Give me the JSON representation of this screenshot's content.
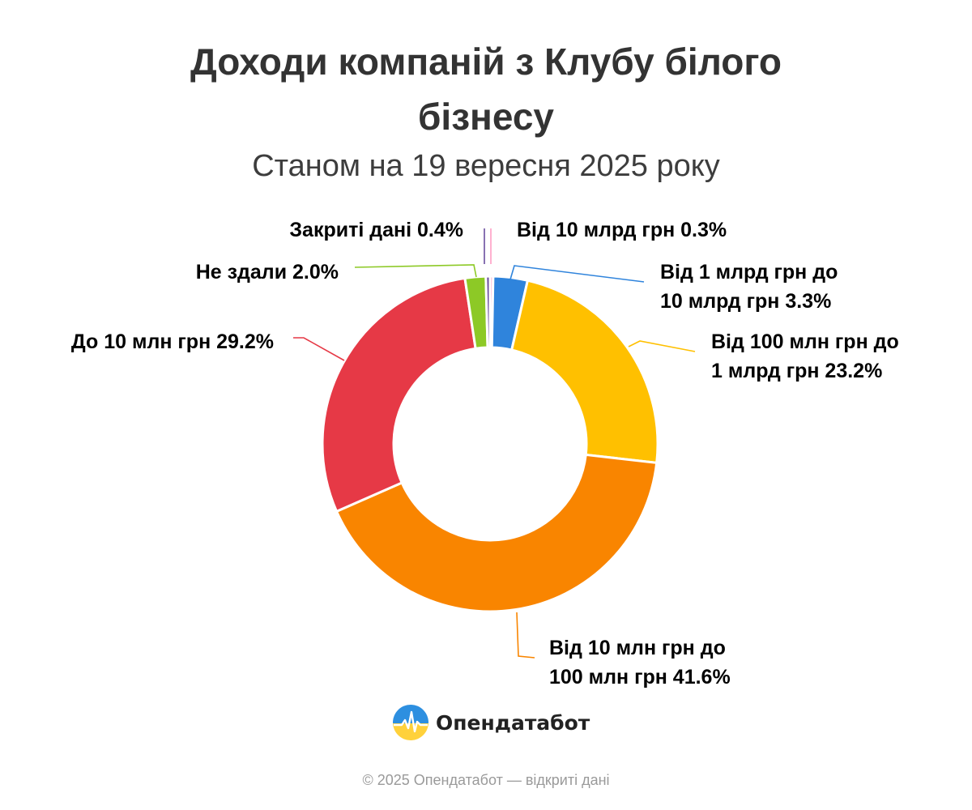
{
  "header": {
    "title": "Доходи компаній з Клубу білого бізнесу",
    "subtitle": "Станом на 19 вересня 2025 року"
  },
  "chart_data": {
    "type": "pie",
    "variant": "donut",
    "title": "Доходи компаній з Клубу білого бізнесу",
    "subtitle": "Станом на 19 вересня 2025 року",
    "legend": "none",
    "slices": [
      {
        "label": "Від 10 млрд грн",
        "value": 0.3,
        "value_text": "0.3%",
        "label_lines": [
          "Від 10 млрд грн 0.3%"
        ],
        "color": "#ff9ec4"
      },
      {
        "label": "Від 1 млрд грн до 10 млрд грн",
        "value": 3.3,
        "value_text": "3.3%",
        "label_lines": [
          "Від 1 млрд грн до",
          "10 млрд грн 3.3%"
        ],
        "color": "#2f84dc"
      },
      {
        "label": "Від 100 млн грн до 1 млрд грн",
        "value": 23.2,
        "value_text": "23.2%",
        "label_lines": [
          "Від 100 млн грн до",
          "1 млрд грн 23.2%"
        ],
        "color": "#ffc000"
      },
      {
        "label": "Від 10 млн грн до 100 млн грн",
        "value": 41.6,
        "value_text": "41.6%",
        "label_lines": [
          "Від 10 млн грн до",
          "100 млн грн 41.6%"
        ],
        "color": "#f98500"
      },
      {
        "label": "До 10 млн грн",
        "value": 29.2,
        "value_text": "29.2%",
        "label_lines": [
          "До 10 млн грн 29.2%"
        ],
        "color": "#e63946"
      },
      {
        "label": "Не здали",
        "value": 2.0,
        "value_text": "2.0%",
        "label_lines": [
          "Не здали 2.0%"
        ],
        "color": "#8dc926"
      },
      {
        "label": "Закриті дані",
        "value": 0.4,
        "value_text": "0.4%",
        "label_lines": [
          "Закриті дані 0.4%"
        ],
        "color": "#6b4d9e"
      }
    ]
  },
  "brand": {
    "name": "Опендатабот",
    "logo_icon": "opendatabot-logo-icon"
  },
  "footer": {
    "text": "© 2025 Опендатабот — відкриті дані"
  }
}
